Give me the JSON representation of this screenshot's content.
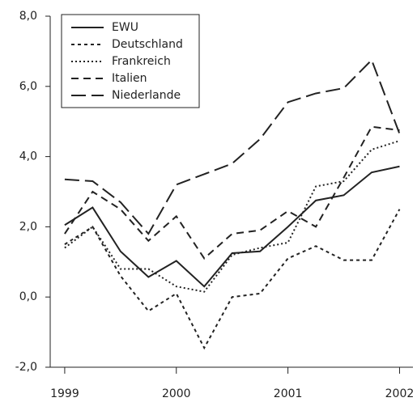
{
  "chart_data": {
    "type": "line",
    "x": [
      1999,
      1999.25,
      1999.5,
      1999.75,
      2000,
      2000.25,
      2000.5,
      2000.75,
      2001,
      2001.25,
      2001.5,
      2001.75,
      2002
    ],
    "series": [
      {
        "name": "EWU",
        "color": "#222222",
        "values": [
          2.05,
          2.55,
          1.3,
          0.57,
          1.03,
          0.3,
          1.25,
          1.3,
          2.0,
          2.75,
          2.9,
          3.55,
          3.72
        ]
      },
      {
        "name": "Deutschland",
        "color": "#222222",
        "values": [
          1.5,
          2.0,
          0.6,
          -0.4,
          0.1,
          -1.45,
          0.0,
          0.1,
          1.1,
          1.45,
          1.05,
          1.05,
          2.5
        ]
      },
      {
        "name": "Frankreich",
        "color": "#222222",
        "values": [
          1.4,
          2.0,
          0.8,
          0.8,
          0.3,
          0.15,
          1.2,
          1.4,
          1.55,
          3.15,
          3.3,
          4.2,
          4.45
        ]
      },
      {
        "name": "Italien",
        "color": "#222222",
        "values": [
          1.8,
          3.0,
          2.5,
          1.6,
          2.3,
          1.1,
          1.8,
          1.9,
          2.45,
          2.0,
          3.4,
          4.85,
          4.75
        ]
      },
      {
        "name": "Niederlande",
        "color": "#222222",
        "values": [
          3.35,
          3.3,
          2.7,
          1.8,
          3.2,
          3.5,
          3.8,
          4.5,
          5.55,
          5.8,
          5.95,
          6.75,
          4.65
        ]
      }
    ],
    "xlim": [
      1998.87,
      2002.12
    ],
    "xticks": [
      1999,
      2000,
      2001,
      2002
    ],
    "ylim": [
      -2,
      8
    ],
    "yticks": [
      {
        "value": -2,
        "label": "-2,0"
      },
      {
        "value": 0,
        "label": "0,0"
      },
      {
        "value": 2,
        "label": "2,0"
      },
      {
        "value": 4,
        "label": "4,0"
      },
      {
        "value": 6,
        "label": "6,0"
      },
      {
        "value": 8,
        "label": "8,0"
      }
    ],
    "grid": false,
    "legend": "upper left"
  }
}
